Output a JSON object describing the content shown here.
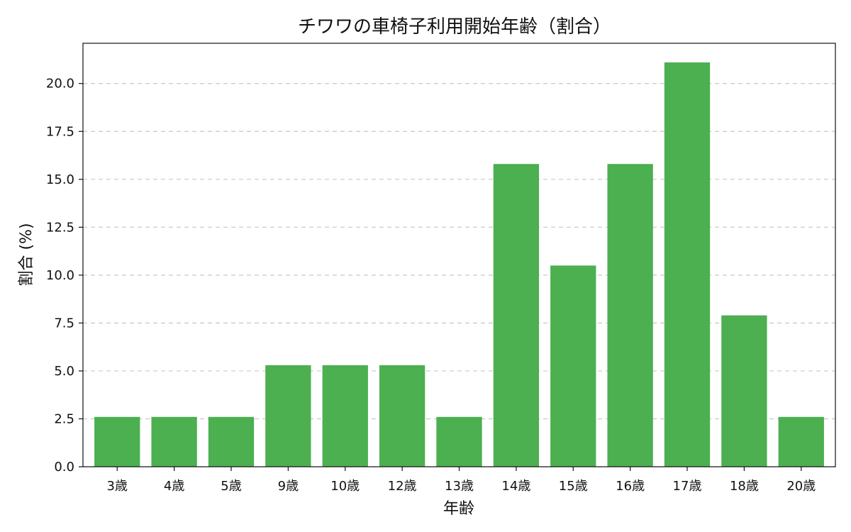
{
  "chart_data": {
    "type": "bar",
    "title": "チワワの車椅子利用開始年齢（割合）",
    "xlabel": "年齢",
    "ylabel": "割合 (%)",
    "categories": [
      "3歳",
      "4歳",
      "5歳",
      "9歳",
      "10歳",
      "12歳",
      "13歳",
      "14歳",
      "15歳",
      "16歳",
      "17歳",
      "18歳",
      "20歳"
    ],
    "values": [
      2.6,
      2.6,
      2.6,
      5.3,
      5.3,
      5.3,
      2.6,
      15.8,
      10.5,
      15.8,
      21.1,
      7.9,
      2.6
    ],
    "ylim": [
      0,
      22.1
    ],
    "yticks": [
      "0.0",
      "2.5",
      "5.0",
      "7.5",
      "10.0",
      "12.5",
      "15.0",
      "17.5",
      "20.0"
    ],
    "grid": "y-dashed",
    "bar_color": "#4caf50"
  }
}
